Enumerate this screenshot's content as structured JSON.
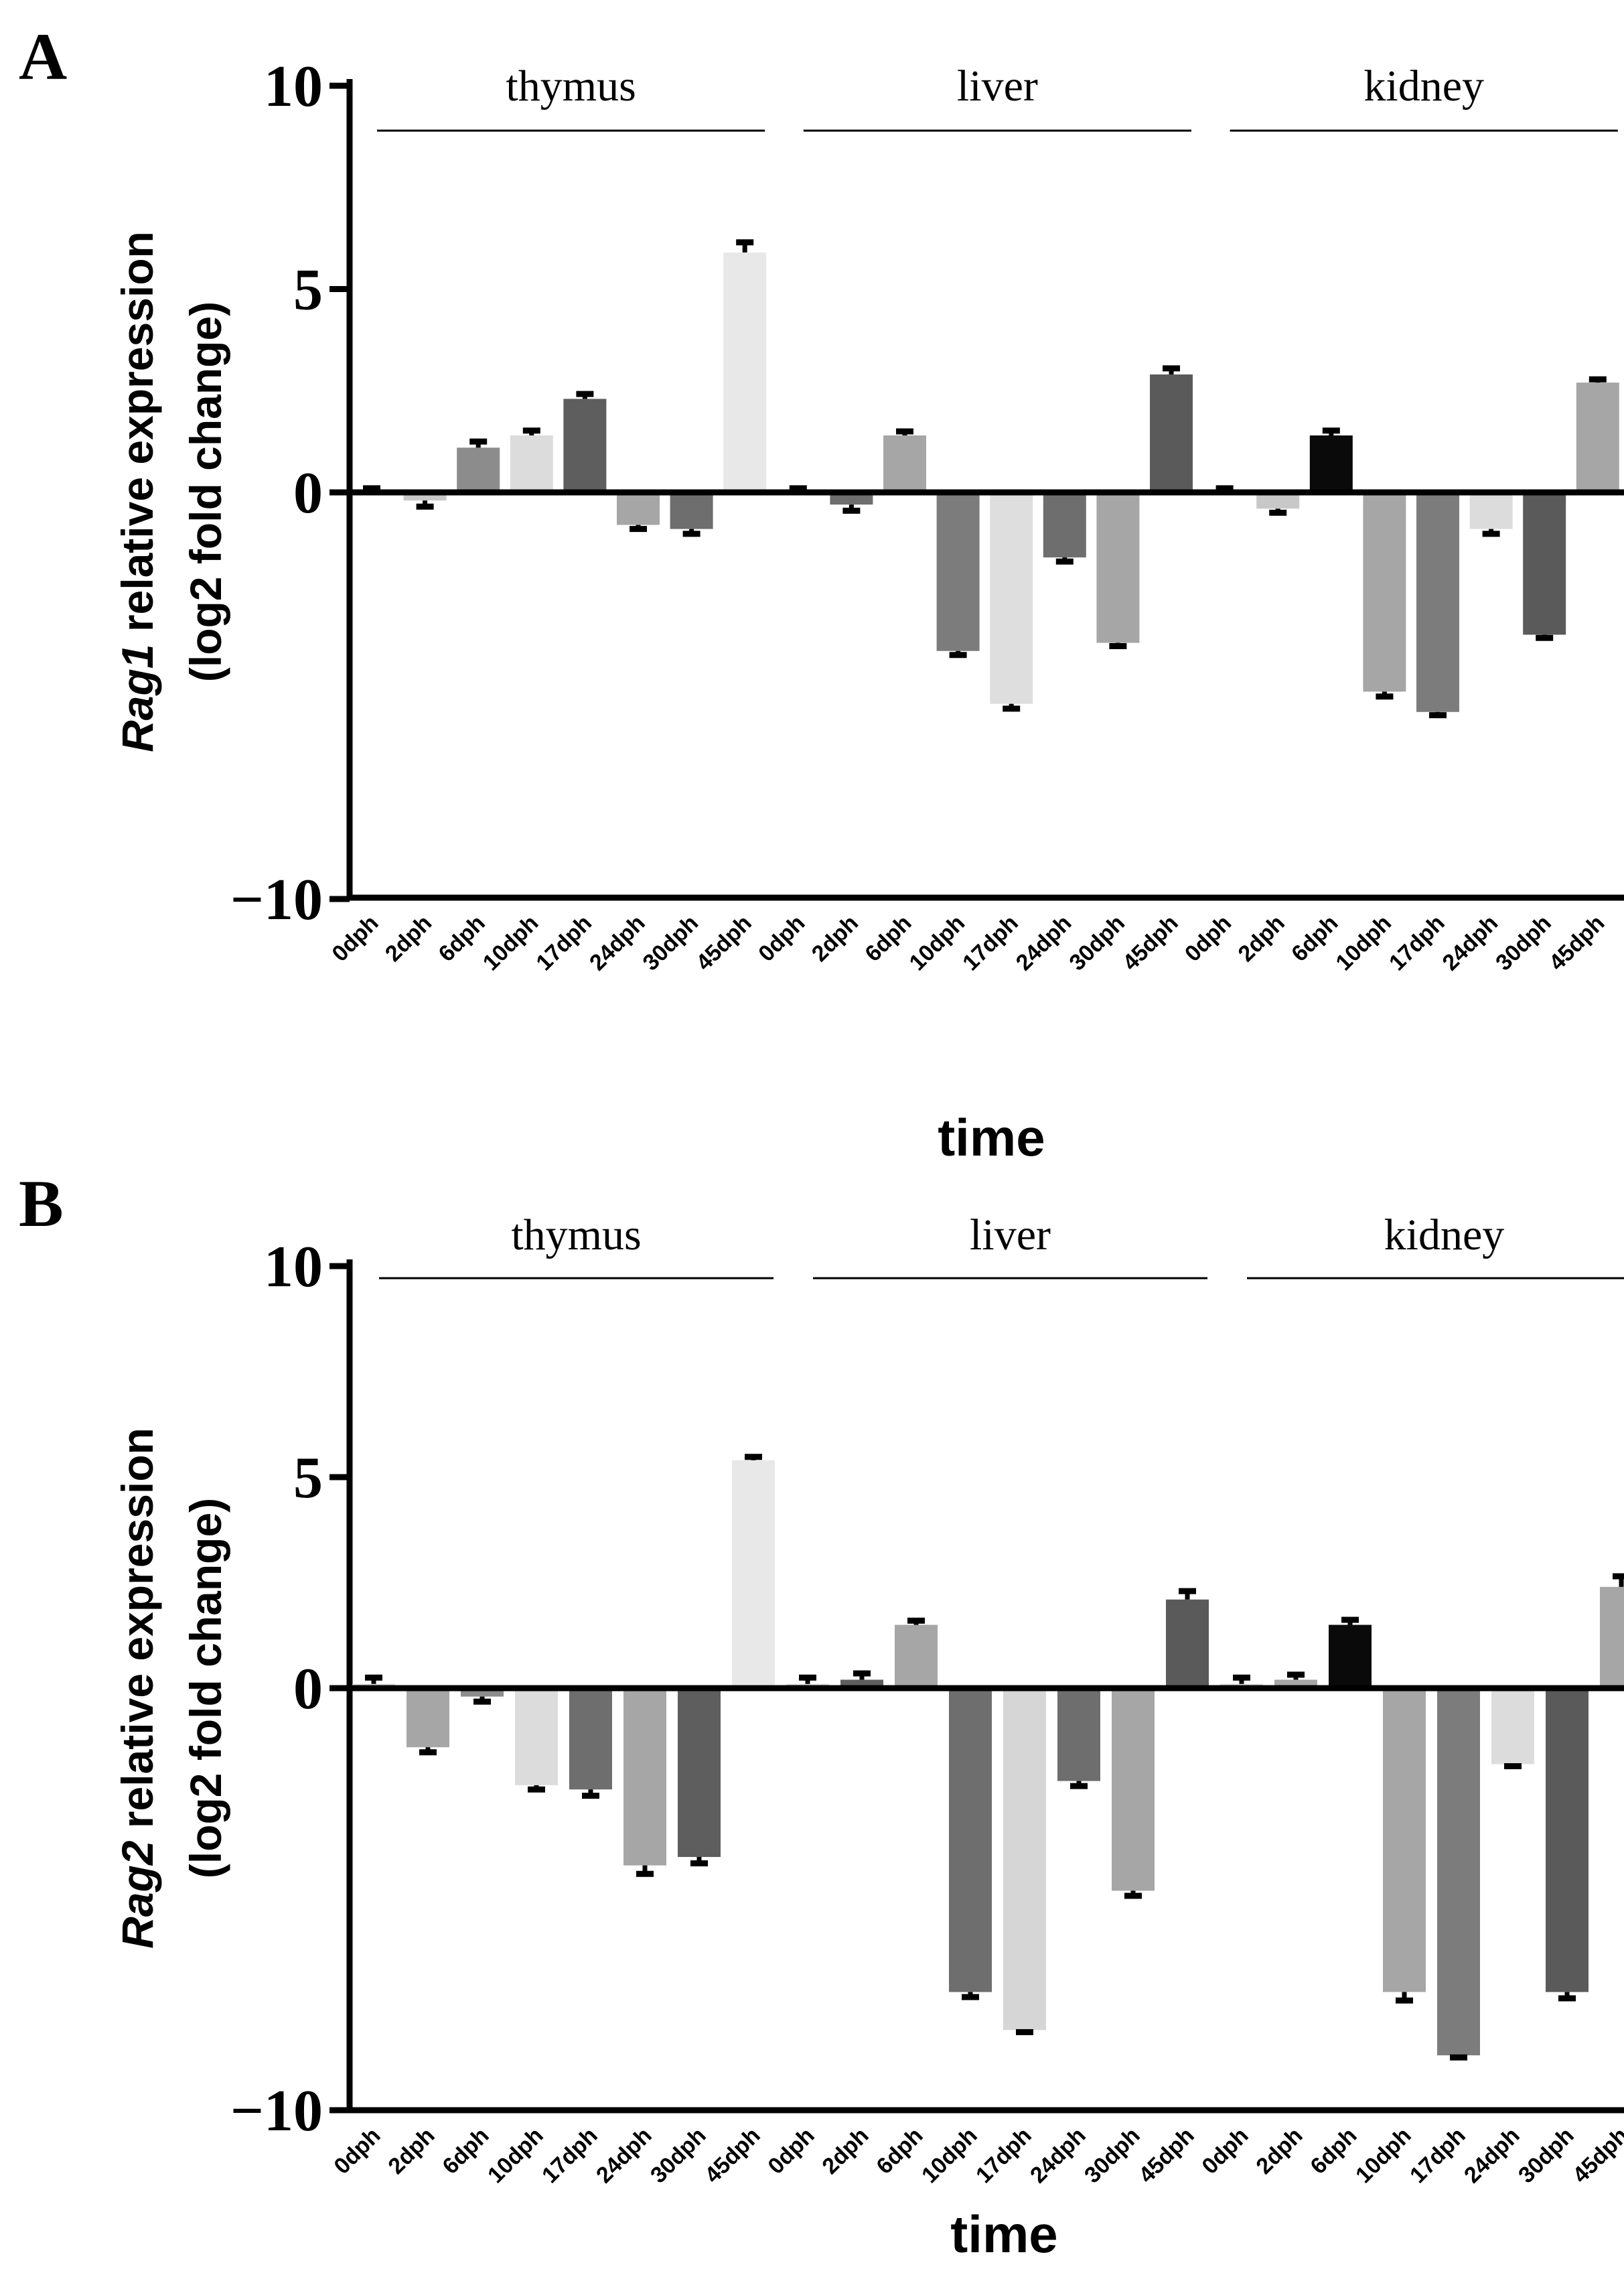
{
  "chart_data": [
    {
      "panel": "A",
      "type": "bar",
      "ylabel_gene": "Rag1",
      "ylabel_rest": " relative expression",
      "ylabel_line2": "(log2 fold change)",
      "xlabel": "time",
      "ylim": [
        -10,
        10
      ],
      "yticks": [
        "10",
        "5",
        "0",
        "−10"
      ],
      "ytick_values": [
        10,
        5,
        0,
        -10
      ],
      "groups": [
        {
          "name": "thymus",
          "categories": [
            "0dph",
            "2dph",
            "6dph",
            "10dph",
            "17dph",
            "24dph",
            "30dph",
            "45dph"
          ],
          "values": [
            0,
            -0.2,
            1.1,
            1.4,
            2.3,
            -0.8,
            -0.9,
            5.9
          ],
          "errors": [
            0.1,
            0.15,
            0.15,
            0.12,
            0.12,
            0.1,
            0.12,
            0.25
          ],
          "colors": [
            "#d6d6d6",
            "#c8c8c8",
            "#8c8c8c",
            "#dcdcdc",
            "#5e5e5e",
            "#a6a6a6",
            "#6e6e6e",
            "#e8e8e8"
          ]
        },
        {
          "name": "liver",
          "categories": [
            "0dph",
            "2dph",
            "6dph",
            "10dph",
            "17dph",
            "24dph",
            "30dph",
            "45dph"
          ],
          "values": [
            0,
            -0.3,
            1.4,
            -3.9,
            -5.2,
            -1.6,
            -3.7,
            2.9
          ],
          "errors": [
            0.1,
            0.15,
            0.1,
            0.1,
            0.12,
            0.1,
            0.08,
            0.15
          ],
          "colors": [
            "#d6d6d6",
            "#6e6e6e",
            "#a6a6a6",
            "#7c7c7c",
            "#dedede",
            "#6e6e6e",
            "#a6a6a6",
            "#5a5a5a"
          ]
        },
        {
          "name": "kidney",
          "categories": [
            "0dph",
            "2dph",
            "6dph",
            "10dph",
            "17dph",
            "24dph",
            "30dph",
            "45dph"
          ],
          "values": [
            0,
            -0.4,
            1.4,
            -4.9,
            -5.4,
            -0.9,
            -3.5,
            2.7
          ],
          "errors": [
            0.1,
            0.1,
            0.12,
            0.12,
            0.08,
            0.12,
            0.08,
            0.08
          ],
          "colors": [
            "#d6d6d6",
            "#c8c8c8",
            "#0a0a0a",
            "#a6a6a6",
            "#7c7c7c",
            "#dcdcdc",
            "#5a5a5a",
            "#a6a6a6"
          ]
        }
      ]
    },
    {
      "panel": "B",
      "type": "bar",
      "ylabel_gene": "Rag2",
      "ylabel_rest": " relative expression",
      "ylabel_line2": "(log2 fold change)",
      "xlabel": "time",
      "ylim": [
        -10,
        10
      ],
      "yticks": [
        "10",
        "5",
        "0",
        "−10"
      ],
      "ytick_values": [
        10,
        5,
        0,
        -10
      ],
      "groups": [
        {
          "name": "thymus",
          "categories": [
            "0dph",
            "2dph",
            "6dph",
            "10dph",
            "17dph",
            "24dph",
            "30dph",
            "45dph"
          ],
          "values": [
            0.1,
            -1.4,
            -0.2,
            -2.3,
            -2.4,
            -4.2,
            -4.0,
            5.4
          ],
          "errors": [
            0.15,
            0.12,
            0.12,
            0.1,
            0.15,
            0.2,
            0.15,
            0.08
          ],
          "colors": [
            "#d6d6d6",
            "#a6a6a6",
            "#8c8c8c",
            "#dcdcdc",
            "#6e6e6e",
            "#a6a6a6",
            "#5e5e5e",
            "#e8e8e8"
          ]
        },
        {
          "name": "liver",
          "categories": [
            "0dph",
            "2dph",
            "6dph",
            "10dph",
            "17dph",
            "24dph",
            "30dph",
            "45dph"
          ],
          "values": [
            0.1,
            0.2,
            1.5,
            -7.2,
            -8.1,
            -2.2,
            -4.8,
            2.1
          ],
          "errors": [
            0.15,
            0.15,
            0.1,
            0.12,
            0.05,
            0.12,
            0.12,
            0.2
          ],
          "colors": [
            "#d6d6d6",
            "#5e5e5e",
            "#a6a6a6",
            "#6e6e6e",
            "#d6d6d6",
            "#6e6e6e",
            "#a6a6a6",
            "#5a5a5a"
          ]
        },
        {
          "name": "kidney",
          "categories": [
            "0dph",
            "2dph",
            "6dph",
            "10dph",
            "17dph",
            "24dph",
            "30dph",
            "45dph"
          ],
          "values": [
            0.1,
            0.2,
            1.5,
            -7.2,
            -8.7,
            -1.8,
            -7.2,
            2.4
          ],
          "errors": [
            0.15,
            0.12,
            0.12,
            0.2,
            0.05,
            0.05,
            0.15,
            0.25
          ],
          "colors": [
            "#d6d6d6",
            "#a6a6a6",
            "#0a0a0a",
            "#a6a6a6",
            "#7c7c7c",
            "#dcdcdc",
            "#5a5a5a",
            "#a6a6a6"
          ]
        }
      ]
    }
  ]
}
